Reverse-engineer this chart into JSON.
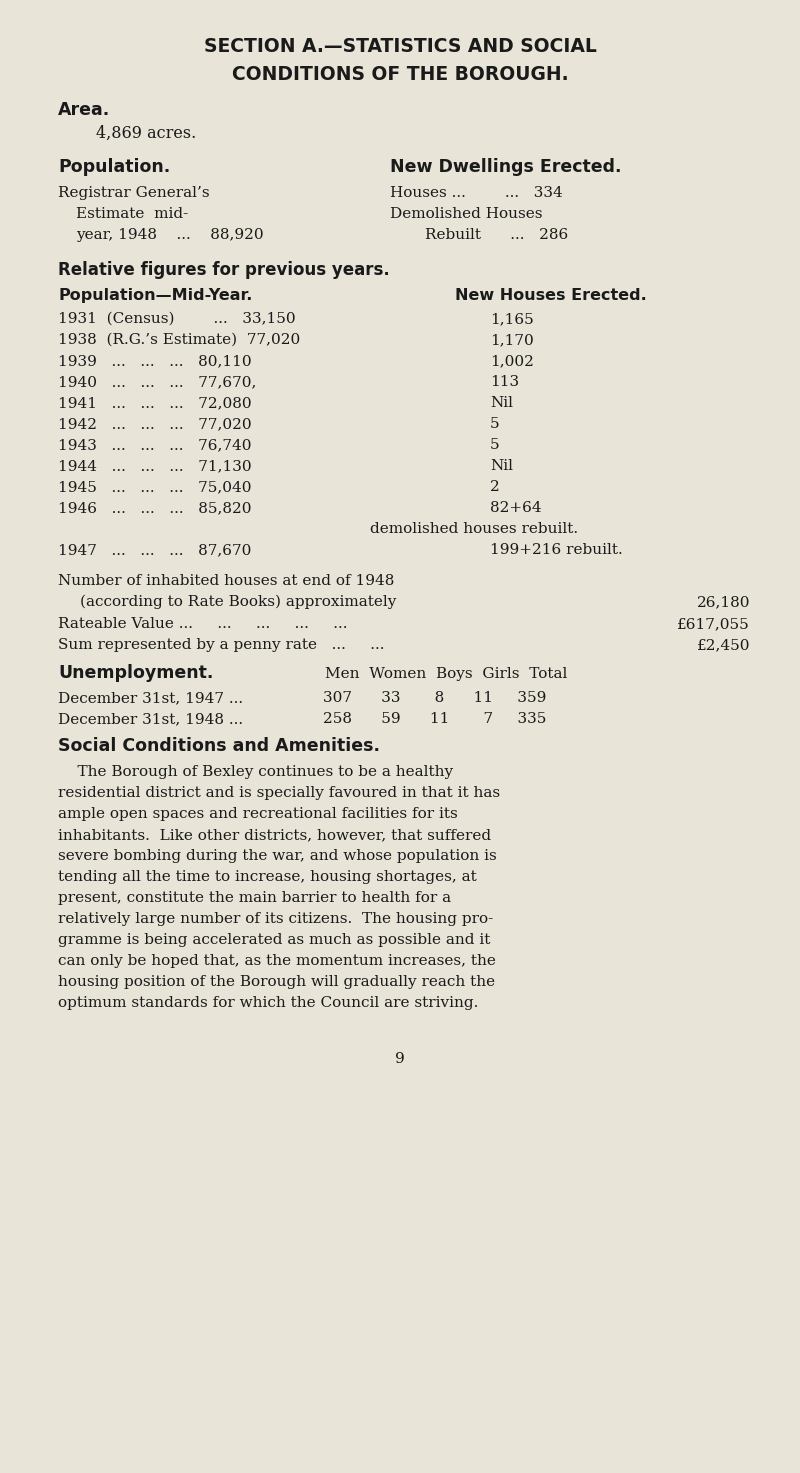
{
  "bg_color": "#e8e4d8",
  "text_color": "#1a1a1a",
  "title1": "SECTION A.—STATISTICS AND SOCIAL",
  "title2": "CONDITIONS OF THE BOROUGH.",
  "area_bold": "Area.",
  "area_text": "4,869 acres.",
  "pop_bold": "Population.",
  "new_dwell_bold": "New Dwellings Erected.",
  "pop_rg_line1": "Registrar General’s",
  "pop_rg_line2": "Estimate  mid-",
  "pop_rg_line3": "year, 1948    ...    88,920",
  "houses_line1": "Houses ...        ...   334",
  "houses_line2": "Demolished Houses",
  "houses_line3": "Rebuilt      ...   286",
  "rel_bold": "Relative figures for previous years.",
  "pop_mid_bold": "Population—Mid-Year.",
  "new_houses_bold": "New Houses Erected.",
  "table_left": [
    "1931  (Census)        ...   33,150",
    "1938  (R.G.’s Estimate)  77,020",
    "1939   ...   ...   ...   80,110",
    "1940   ...   ...   ...   77,670,",
    "1941   ...   ...   ...   72,080",
    "1942   ...   ...   ...   77,020",
    "1943   ...   ...   ...   76,740",
    "1944   ...   ...   ...   71,130",
    "1945   ...   ...   ...   75,040",
    "1946   ...   ...   ...   85,820",
    "",
    "1947   ...   ...   ...   87,670"
  ],
  "table_right": [
    "1,165",
    "1,170",
    "1,002",
    "113",
    "Nil",
    "5",
    "5",
    "Nil",
    "2",
    "82+64",
    "demolished houses rebuilt.",
    "199+216 rebuilt."
  ],
  "table_right_indent": [
    false,
    false,
    false,
    false,
    false,
    false,
    false,
    false,
    false,
    false,
    true,
    false
  ],
  "num_inh_line1": "Number of inhabited houses at end of 1948",
  "num_inh_line2": "(according to Rate Books) approximately",
  "num_inh_val": "26,180",
  "rateable_label": "Rateable Value ...     ...     ...     ...     ...",
  "rateable_val": "£617,055",
  "penny_label": "Sum represented by a penny rate   ...     ...",
  "penny_val": "£2,450",
  "unemp_bold": "Unemployment.",
  "unemp_hdr": "Men  Women  Boys  Girls  Total",
  "unemp_r1_lbl": "December 31st, 1947 ...",
  "unemp_r1_val": "307      33       8      11     359",
  "unemp_r2_lbl": "December 31st, 1948 ...",
  "unemp_r2_val": "258      59      11       7     335",
  "social_bold": "Social Conditions and Amenities.",
  "social_lines": [
    "    The Borough of Bexley continues to be a healthy",
    "residential district and is specially favoured in that it has",
    "ample open spaces and recreational facilities for its",
    "inhabitants.  Like other districts, however, that suffered",
    "severe bombing during the war, and whose population is",
    "tending all the time to increase, housing shortages, at",
    "present, constitute the main barrier to health for a",
    "relatively large number of its citizens.  The housing pro-",
    "gramme is being accelerated as much as possible and it",
    "can only be hoped that, as the momentum increases, the",
    "housing position of the Borough will gradually reach the",
    "optimum standards for which the Council are striving."
  ],
  "page_num": "9"
}
